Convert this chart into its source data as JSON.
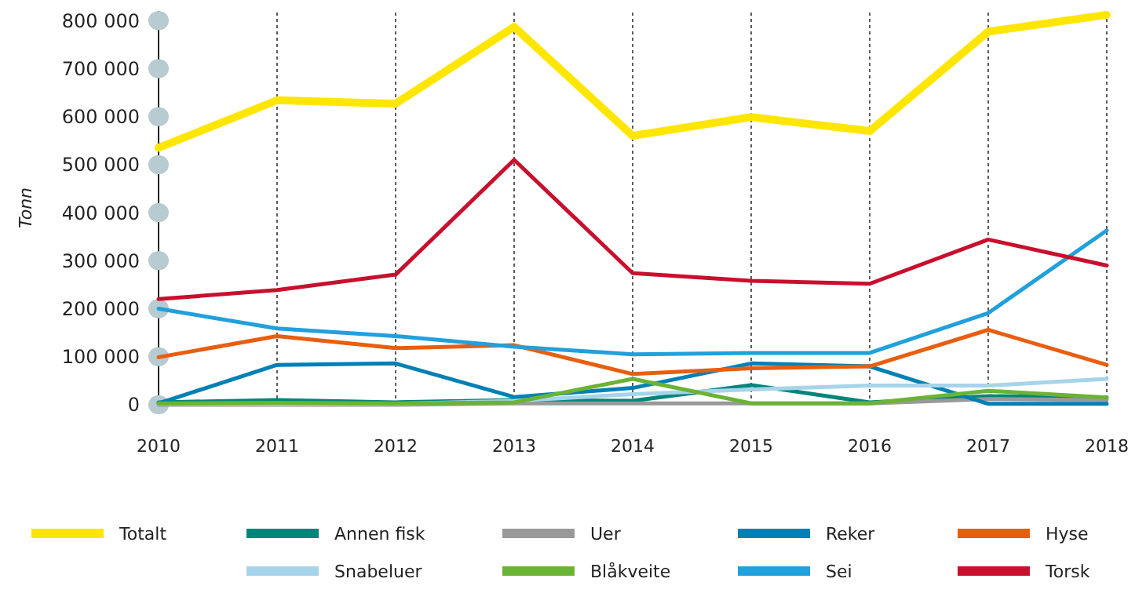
{
  "chart_data": {
    "type": "line",
    "ylabel": "Tonn",
    "x": [
      2010,
      2011,
      2012,
      2013,
      2014,
      2015,
      2016,
      2017,
      2018
    ],
    "xlim": [
      2010,
      2018
    ],
    "xticks": [
      2010,
      2011,
      2012,
      2013,
      2014,
      2015,
      2016,
      2017,
      2018
    ],
    "ylim": [
      0,
      820000
    ],
    "yticks": [
      0,
      {
        "value": 100000,
        "label": "100 000"
      },
      {
        "value": 200000,
        "label": "200 000"
      },
      {
        "value": 300000,
        "label": "300 000"
      },
      {
        "value": 400000,
        "label": "400 000"
      },
      {
        "value": 500000,
        "label": "500 000"
      },
      {
        "value": 600000,
        "label": "600 000"
      },
      {
        "value": 700000,
        "label": "700 000"
      },
      {
        "value": 800000,
        "label": "800 000"
      }
    ],
    "grid": "x",
    "legend": "bottom",
    "marker": "none",
    "line_style": "solid",
    "series": [
      {
        "name": "Totalt",
        "color": "#ffe600",
        "values": [
          535000,
          634000,
          627000,
          787000,
          560000,
          599000,
          570000,
          777000,
          812000
        ]
      },
      {
        "name": "Annen fisk",
        "color": "#00857a",
        "values": [
          5000,
          10000,
          5000,
          10000,
          8000,
          41000,
          5000,
          18000,
          15000
        ]
      },
      {
        "name": "Uer",
        "color": "#999999",
        "values": [
          0,
          0,
          0,
          3000,
          3000,
          3000,
          3000,
          12000,
          10000
        ]
      },
      {
        "name": "Reker",
        "color": "#0080b4",
        "values": [
          3000,
          83000,
          86000,
          16000,
          35000,
          86000,
          80000,
          2000,
          2000
        ]
      },
      {
        "name": "Hyse",
        "color": "#e85e10",
        "values": [
          99000,
          143000,
          118000,
          124000,
          64000,
          76000,
          80000,
          156000,
          83000
        ]
      },
      {
        "name": "Snabeluer",
        "color": "#a6d4ea",
        "values": [
          2000,
          2000,
          2000,
          8000,
          22000,
          32000,
          40000,
          40000,
          54000
        ]
      },
      {
        "name": "Blåkveite",
        "color": "#6ab334",
        "values": [
          3000,
          4000,
          3000,
          5000,
          54000,
          3000,
          3000,
          29000,
          15000
        ]
      },
      {
        "name": "Sei",
        "color": "#20a0dc",
        "values": [
          200000,
          159000,
          143000,
          121000,
          105000,
          108000,
          108000,
          191000,
          363000
        ]
      },
      {
        "name": "Torsk",
        "color": "#c8102e",
        "values": [
          220000,
          239000,
          271000,
          510000,
          274000,
          258000,
          252000,
          344000,
          290000
        ]
      }
    ]
  }
}
